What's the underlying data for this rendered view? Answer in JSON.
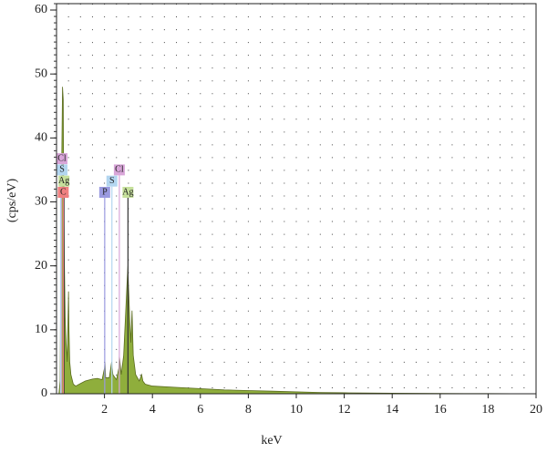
{
  "chart_data": {
    "type": "area",
    "x_label": "keV",
    "y_label": "(cps/eV)",
    "xlim": [
      0,
      20
    ],
    "ylim": [
      0,
      61
    ],
    "xticks": [
      2,
      4,
      6,
      8,
      10,
      12,
      14,
      16,
      18,
      20
    ],
    "yticks": [
      0,
      10,
      20,
      30,
      40,
      50,
      60
    ],
    "grid": true,
    "series": [
      {
        "color": "#8fae3c",
        "x": [
          0.1,
          0.15,
          0.2,
          0.25,
          0.28,
          0.3,
          0.33,
          0.36,
          0.4,
          0.45,
          0.5,
          0.52,
          0.55,
          0.6,
          0.7,
          0.8,
          1.0,
          1.2,
          1.5,
          1.7,
          1.9,
          2.0,
          2.02,
          2.05,
          2.2,
          2.3,
          2.35,
          2.5,
          2.6,
          2.62,
          2.7,
          2.8,
          2.9,
          2.95,
          2.98,
          3.0,
          3.05,
          3.1,
          3.15,
          3.2,
          3.3,
          3.45,
          3.55,
          3.6,
          3.7,
          4.0,
          5,
          6,
          7,
          8,
          9,
          10,
          11,
          12,
          14,
          16,
          18,
          20
        ],
        "values": [
          0,
          2,
          30,
          48,
          46,
          30,
          20,
          12,
          8,
          5,
          16,
          10,
          5,
          3,
          1.5,
          1.2,
          1.6,
          2.0,
          2.3,
          2.4,
          2.2,
          4,
          5,
          2.5,
          2.5,
          5,
          3,
          2.2,
          4,
          6,
          3,
          6,
          14,
          18,
          20,
          17,
          12,
          8,
          13,
          6,
          3,
          2,
          3,
          2,
          1.5,
          1.2,
          1.0,
          0.8,
          0.6,
          0.5,
          0.4,
          0.3,
          0.2,
          0.15,
          0.08,
          0.05,
          0.03,
          0
        ]
      }
    ],
    "markers": [
      {
        "label": "Cl",
        "energy": 0.2,
        "color": "#d9a6d9"
      },
      {
        "label": "S",
        "energy": 0.17,
        "color": "#b3d6f0"
      },
      {
        "label": "Ag",
        "energy": 0.31,
        "color": "#c6e09c"
      },
      {
        "label": "C",
        "energy": 0.28,
        "color": "#f08080"
      },
      {
        "label": "P",
        "energy": 2.01,
        "color": "#9a9ae0"
      },
      {
        "label": "S",
        "energy": 2.31,
        "color": "#b3d6f0"
      },
      {
        "label": "Cl",
        "energy": 2.62,
        "color": "#d9a6d9"
      },
      {
        "label": "Ag",
        "energy": 2.98,
        "color": "#c6e09c"
      }
    ]
  }
}
